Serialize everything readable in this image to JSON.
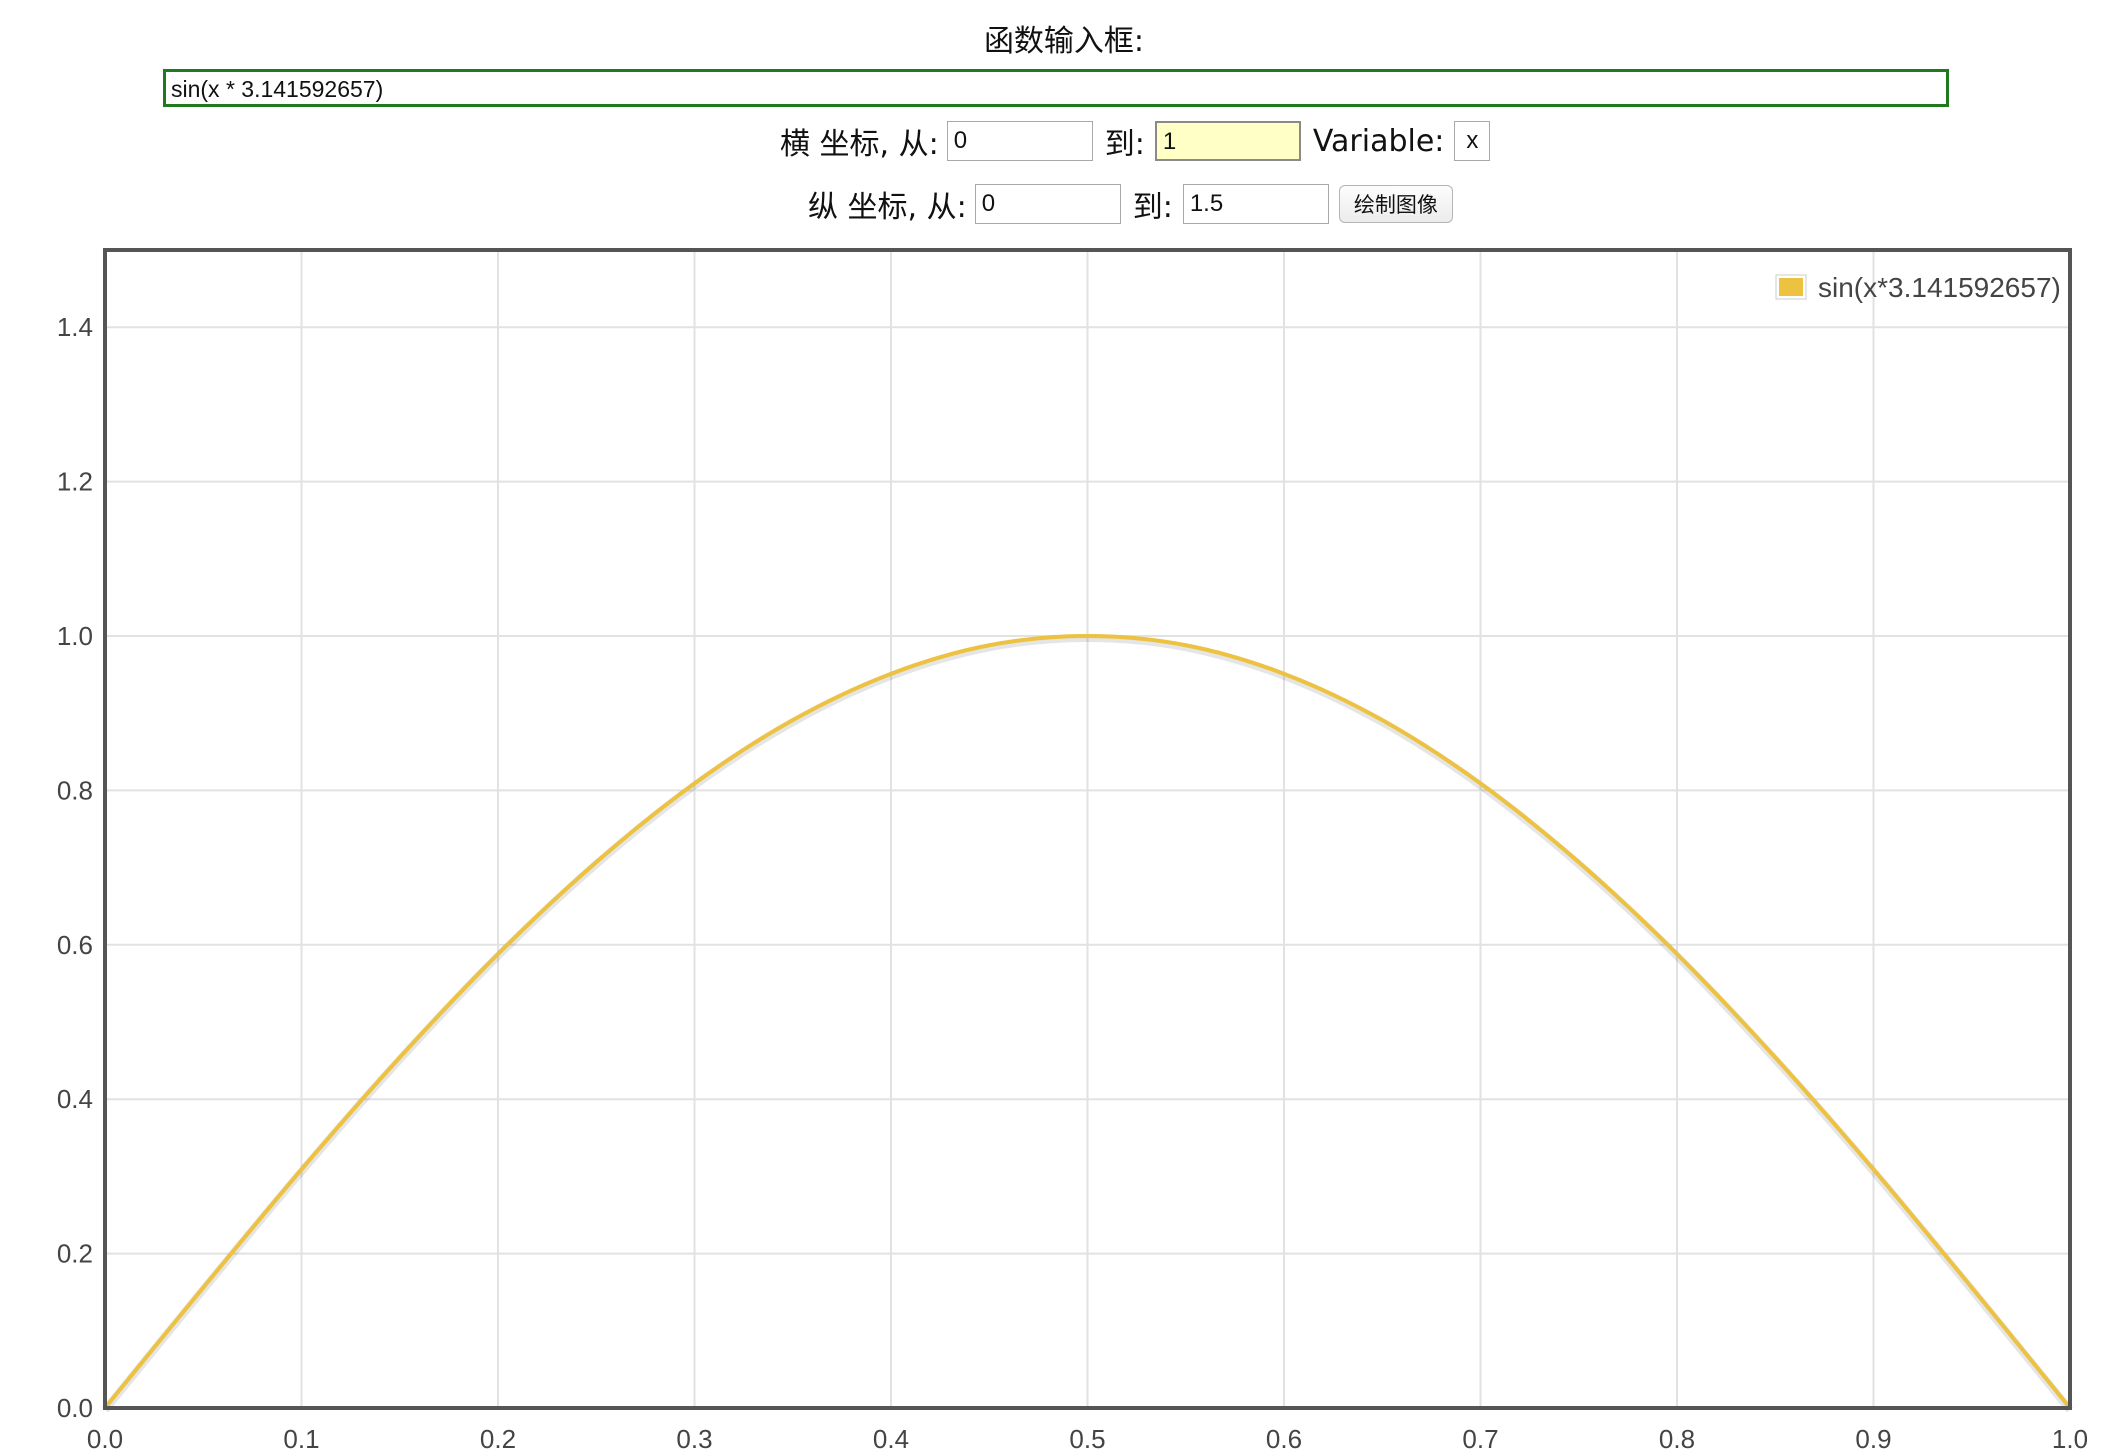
{
  "header": {
    "title": "函数输入框:"
  },
  "function_input": {
    "value": "sin(x * 3.141592657)"
  },
  "x_axis_row": {
    "label_from": "横 坐标, 从:",
    "from_value": "0",
    "label_to": "到:",
    "to_value": "1",
    "variable_label": "Variable:",
    "variable_value": "x"
  },
  "y_axis_row": {
    "label_from": "纵 坐标, 从:",
    "from_value": "0",
    "label_to": "到:",
    "to_value": "1.5",
    "plot_button_label": "绘制图像"
  },
  "chart_data": {
    "type": "line",
    "title": "",
    "xlabel": "",
    "ylabel": "",
    "xlim": [
      0,
      1
    ],
    "ylim": [
      0,
      1.5
    ],
    "x_ticks": [
      "0.0",
      "0.1",
      "0.2",
      "0.3",
      "0.4",
      "0.5",
      "0.6",
      "0.7",
      "0.8",
      "0.9",
      "1.0"
    ],
    "y_ticks": [
      "0.0",
      "0.2",
      "0.4",
      "0.6",
      "0.8",
      "1.0",
      "1.2",
      "1.4"
    ],
    "grid": true,
    "legend_position": "top-right",
    "series": [
      {
        "name": "sin(x*3.141592657)",
        "color": "#edc240",
        "x": [
          0,
          0.05,
          0.1,
          0.15,
          0.2,
          0.25,
          0.3,
          0.35,
          0.4,
          0.45,
          0.5,
          0.55,
          0.6,
          0.65,
          0.7,
          0.75,
          0.8,
          0.85,
          0.9,
          0.95,
          1.0
        ],
        "y": [
          0,
          0.156,
          0.309,
          0.454,
          0.588,
          0.707,
          0.809,
          0.891,
          0.951,
          0.988,
          1.0,
          0.988,
          0.951,
          0.891,
          0.809,
          0.707,
          0.588,
          0.454,
          0.309,
          0.156,
          0
        ]
      }
    ]
  }
}
